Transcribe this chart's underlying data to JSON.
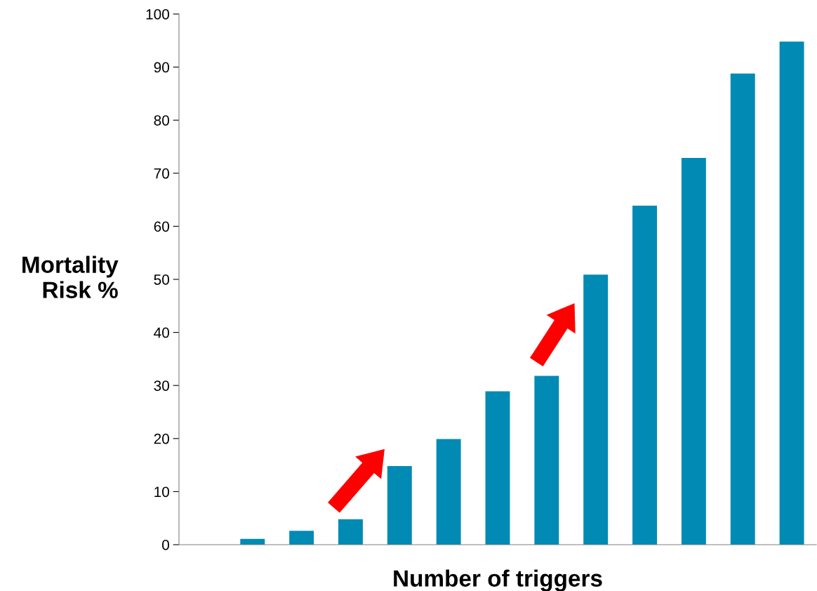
{
  "chart_data": {
    "type": "bar",
    "xlabel": "Number of triggers",
    "ylabel": "Mortality\nRisk %",
    "categories": [
      null,
      null,
      null,
      null,
      null,
      null,
      null,
      null,
      null,
      null,
      null,
      null,
      null
    ],
    "values": [
      0,
      1.1,
      2.6,
      4.8,
      14.8,
      19.9,
      28.9,
      31.8,
      50.9,
      63.9,
      72.9,
      88.8,
      94.8
    ],
    "color": "#008ab4",
    "ylim": [
      0,
      100
    ],
    "yticks": [
      0,
      10,
      20,
      30,
      40,
      50,
      60,
      70,
      80,
      90,
      100
    ],
    "grid": false,
    "legend": false
  }
}
